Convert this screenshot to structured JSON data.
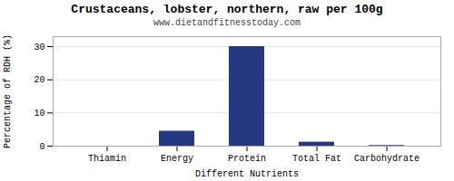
{
  "chart_data": {
    "type": "bar",
    "title": "Crustaceans, lobster, northern, raw per 100g",
    "subtitle": "www.dietandfitnesstoday.com",
    "xlabel": "Different Nutrients",
    "ylabel": "Percentage of RDH (%)",
    "categories": [
      "Thiamin",
      "Energy",
      "Protein",
      "Total Fat",
      "Carbohydrate"
    ],
    "values": [
      0,
      4.5,
      30,
      1.2,
      0.2
    ],
    "color": "#253882",
    "ylim": [
      0,
      33
    ],
    "yticks": [
      0,
      10,
      20,
      30
    ],
    "grid": true
  }
}
